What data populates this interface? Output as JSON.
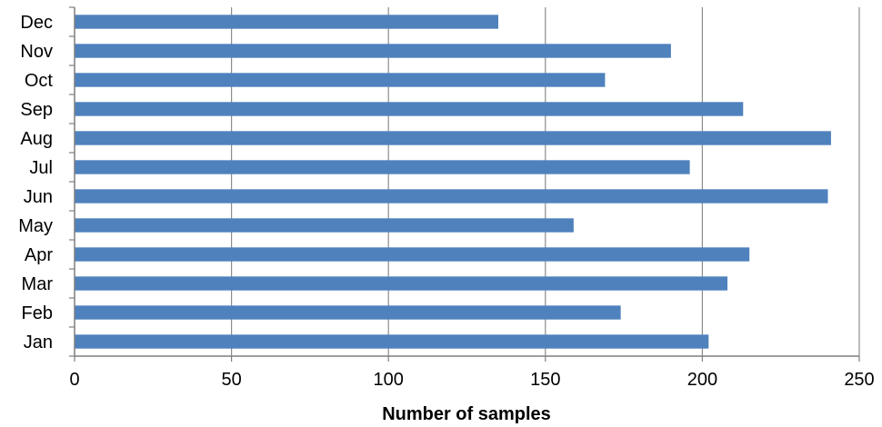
{
  "chart_data": {
    "type": "bar",
    "orientation": "horizontal",
    "categories": [
      "Jan",
      "Feb",
      "Mar",
      "Apr",
      "May",
      "Jun",
      "Jul",
      "Aug",
      "Sep",
      "Oct",
      "Nov",
      "Dec"
    ],
    "values": [
      202,
      174,
      208,
      215,
      159,
      240,
      196,
      241,
      213,
      169,
      190,
      135
    ],
    "xlabel": "Number of samples",
    "ylabel": "",
    "xlim": [
      0,
      250
    ],
    "xticks": [
      "0",
      "50",
      "100",
      "150",
      "200",
      "250"
    ],
    "grid": "vertical",
    "legend": "none",
    "bar_color": "#4F81BD"
  }
}
